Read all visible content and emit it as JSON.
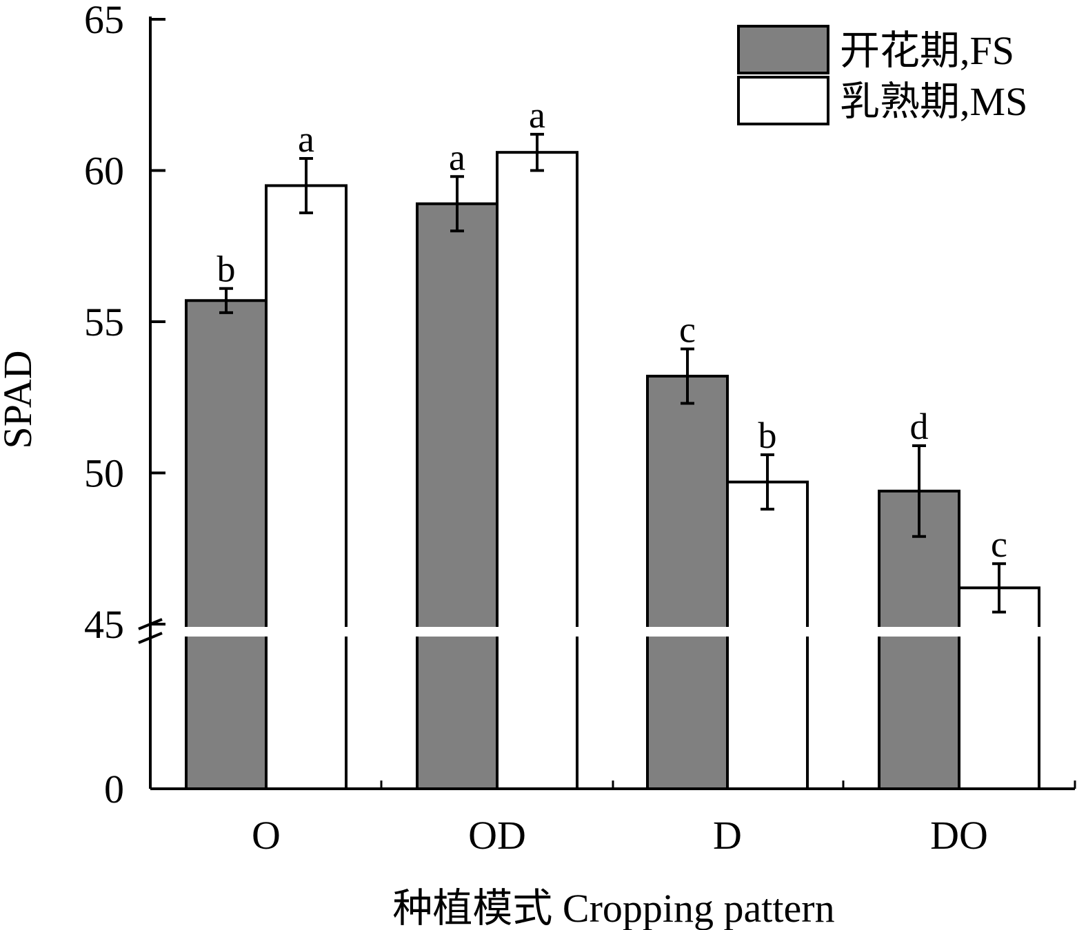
{
  "chart_data": {
    "type": "bar",
    "xlabel": "种植模式 Cropping pattern",
    "ylabel": "SPAD",
    "categories": [
      "O",
      "OD",
      "D",
      "DO"
    ],
    "y_axis_break": {
      "lower_range": [
        0,
        45
      ],
      "upper_range": [
        45,
        65
      ]
    },
    "yticks": [
      {
        "value": 0,
        "label": "0"
      },
      {
        "value": 45,
        "label": "45"
      },
      {
        "value": 50,
        "label": "50"
      },
      {
        "value": 55,
        "label": "55"
      },
      {
        "value": 60,
        "label": "60"
      },
      {
        "value": 65,
        "label": "65"
      }
    ],
    "legend_position": "top-right",
    "series": [
      {
        "name": "开花期,FS",
        "color": "#808080",
        "values": [
          55.7,
          58.9,
          53.2,
          49.4
        ],
        "errors": [
          0.4,
          0.9,
          0.9,
          1.5
        ],
        "significance": [
          "b",
          "a",
          "c",
          "d"
        ]
      },
      {
        "name": "乳熟期,MS",
        "color": "#ffffff",
        "values": [
          59.5,
          60.6,
          49.7,
          46.2
        ],
        "errors": [
          0.9,
          0.6,
          0.9,
          0.8
        ],
        "significance": [
          "a",
          "a",
          "b",
          "c"
        ]
      }
    ]
  }
}
